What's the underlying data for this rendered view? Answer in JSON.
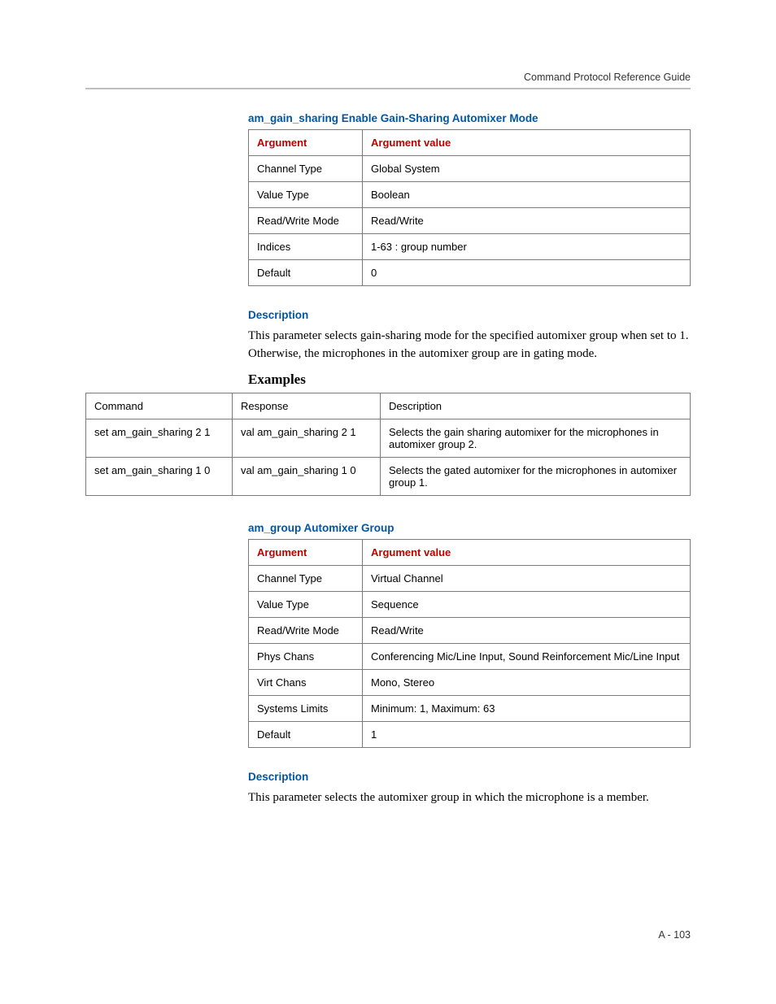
{
  "header": {
    "title": "Command Protocol Reference Guide"
  },
  "sec1": {
    "title": "am_gain_sharing Enable Gain-Sharing Automixer Mode",
    "argTable": {
      "headers": [
        "Argument",
        "Argument value"
      ],
      "rows": [
        [
          "Channel Type",
          "Global System"
        ],
        [
          "Value Type",
          "Boolean"
        ],
        [
          "Read/Write Mode",
          "Read/Write"
        ],
        [
          "Indices",
          "1-63 : group number"
        ],
        [
          "Default",
          "0"
        ]
      ]
    },
    "descHeading": "Description",
    "descBody": "This parameter selects gain-sharing mode for the specified automixer group when set to 1. Otherwise, the microphones in the automixer group are in gating mode.",
    "examplesHeading": "Examples",
    "exTable": {
      "headers": [
        "Command",
        "Response",
        "Description"
      ],
      "rows": [
        [
          "set am_gain_sharing 2 1",
          "val am_gain_sharing 2 1",
          "Selects the gain sharing automixer for the microphones in automixer group 2."
        ],
        [
          "set am_gain_sharing 1 0",
          "val am_gain_sharing 1 0",
          "Selects the gated automixer for the microphones in automixer group 1."
        ]
      ]
    }
  },
  "sec2": {
    "title": "am_group Automixer Group",
    "argTable": {
      "headers": [
        "Argument",
        "Argument value"
      ],
      "rows": [
        [
          "Channel Type",
          "Virtual Channel"
        ],
        [
          "Value Type",
          "Sequence"
        ],
        [
          "Read/Write Mode",
          "Read/Write"
        ],
        [
          "Phys Chans",
          "Conferencing Mic/Line Input, Sound Reinforcement Mic/Line Input"
        ],
        [
          "Virt Chans",
          "Mono, Stereo"
        ],
        [
          "Systems Limits",
          "Minimum: 1, Maximum: 63"
        ],
        [
          "Default",
          "1"
        ]
      ]
    },
    "descHeading": "Description",
    "descBody": "This parameter selects the automixer group in which the microphone is a member."
  },
  "footer": {
    "text": "A - 103"
  }
}
